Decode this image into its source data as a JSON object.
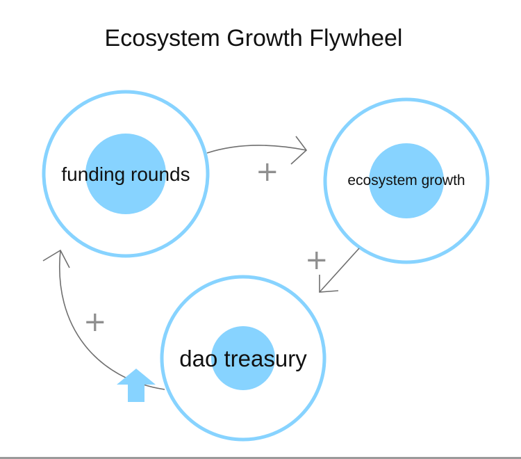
{
  "diagram": {
    "title": "Ecosystem Growth Flywheel",
    "nodes": [
      {
        "id": "funding",
        "label": "funding rounds"
      },
      {
        "id": "ecosystem",
        "label": "ecosystem growth"
      },
      {
        "id": "treasury",
        "label": "dao treasury"
      }
    ],
    "links": [
      {
        "from": "funding rounds",
        "to": "ecosystem growth",
        "polarity": "+"
      },
      {
        "from": "ecosystem growth",
        "to": "dao treasury",
        "polarity": "+"
      },
      {
        "from": "dao treasury",
        "to": "funding rounds",
        "polarity": "+"
      }
    ],
    "colors": {
      "ring": "#87d3ff",
      "core": "#87d3ff",
      "arrow": "#6f6f6f",
      "polarity": "#8f8f8f",
      "indicator": "#87d3ff"
    },
    "icons": {
      "treasury_indicator": "up-arrow-icon"
    }
  }
}
